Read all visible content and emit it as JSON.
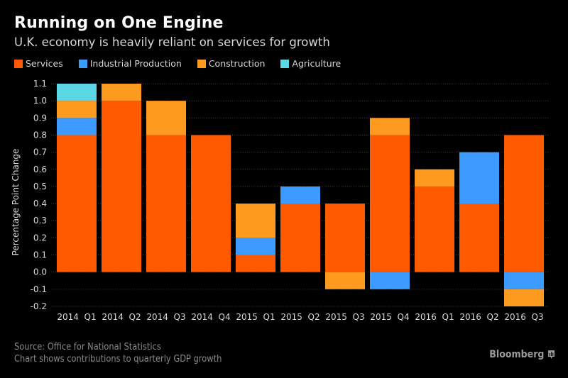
{
  "header": {
    "title": "Running on One Engine",
    "subtitle": "U.K. economy is heavily reliant on services for growth"
  },
  "footer": {
    "source": "Source: Office for National Statistics",
    "note": "Chart shows contributions to quarterly GDP growth",
    "brand": "Bloomberg",
    "brand_icon": "bloomberg-chart-icon"
  },
  "chart_data": {
    "type": "bar",
    "stacked": true,
    "title": "Running on One Engine",
    "subtitle": "U.K. economy is heavily reliant on services for growth",
    "xlabel": "",
    "ylabel": "Percentage Point Change",
    "ylim": [
      -0.2,
      1.1
    ],
    "yticks": [
      1.1,
      1.0,
      0.9,
      0.8,
      0.7,
      0.6,
      0.5,
      0.4,
      0.3,
      0.2,
      0.1,
      0.0,
      -0.1,
      -0.2
    ],
    "ytick_labels": [
      "1.1",
      "1.0",
      "0.9",
      "0.8",
      "0.7",
      "0.6",
      "0.5",
      "0.4",
      "0.3",
      "0.2",
      "0.1",
      "0.0",
      "-0.1",
      "-0.2"
    ],
    "grid": true,
    "legend_position": "top-left",
    "categories": [
      "2014 Q1",
      "2014 Q2",
      "2014 Q3",
      "2014 Q4",
      "2015 Q1",
      "2015 Q2",
      "2015 Q3",
      "2015 Q4",
      "2016 Q1",
      "2016 Q2",
      "2016 Q3"
    ],
    "series": [
      {
        "name": "Services",
        "color": "#ff5a00",
        "values": [
          0.8,
          1.0,
          0.8,
          0.8,
          0.1,
          0.4,
          0.4,
          0.8,
          0.5,
          0.4,
          0.8
        ]
      },
      {
        "name": "Industrial Production",
        "color": "#3d9bff",
        "values": [
          0.1,
          0.0,
          0.0,
          0.0,
          0.1,
          0.1,
          0.0,
          -0.1,
          0.0,
          0.3,
          -0.1
        ]
      },
      {
        "name": "Construction",
        "color": "#ff9a21",
        "values": [
          0.1,
          0.1,
          0.2,
          0.0,
          0.2,
          0.0,
          -0.1,
          0.1,
          0.1,
          0.0,
          -0.1
        ]
      },
      {
        "name": "Agriculture",
        "color": "#5dd6e6",
        "values": [
          0.1,
          0.0,
          0.0,
          0.0,
          0.0,
          0.0,
          0.0,
          0.0,
          0.0,
          0.0,
          0.0
        ]
      }
    ]
  }
}
